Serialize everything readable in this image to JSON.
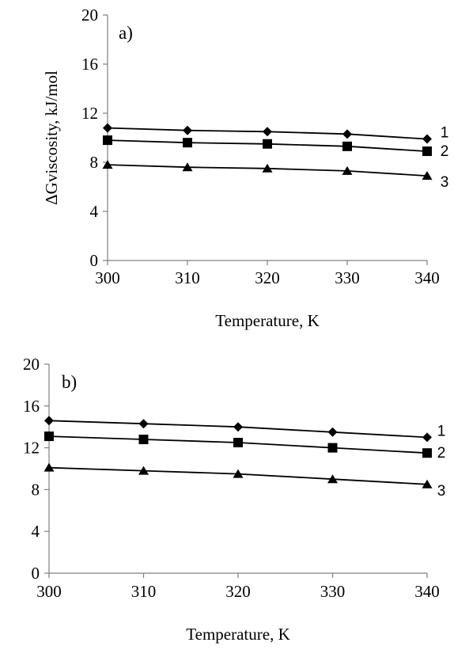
{
  "chart_data": [
    {
      "type": "line",
      "panel_label": "a)",
      "xlabel": "Temperature, K",
      "ylabel": "ΔGviscosity, kJ/mol",
      "x": [
        300,
        310,
        320,
        330,
        340
      ],
      "xlim": [
        300,
        340
      ],
      "ylim": [
        0,
        20
      ],
      "xticks": [
        "300",
        "310",
        "320",
        "330",
        "340"
      ],
      "yticks": [
        "0",
        "4",
        "8",
        "12",
        "16",
        "20"
      ],
      "grid": false,
      "series": [
        {
          "name": "1",
          "marker": "diamond",
          "values": [
            10.8,
            10.6,
            10.5,
            10.3,
            9.9
          ]
        },
        {
          "name": "2",
          "marker": "square",
          "values": [
            9.8,
            9.6,
            9.5,
            9.3,
            8.9
          ]
        },
        {
          "name": "3",
          "marker": "triangle",
          "values": [
            7.8,
            7.6,
            7.5,
            7.3,
            6.9
          ]
        }
      ]
    },
    {
      "type": "line",
      "panel_label": "b)",
      "xlabel": "Temperature, K",
      "ylabel": "",
      "x": [
        300,
        310,
        320,
        330,
        340
      ],
      "xlim": [
        300,
        340
      ],
      "ylim": [
        0,
        20
      ],
      "xticks": [
        "300",
        "310",
        "320",
        "330",
        "340"
      ],
      "yticks": [
        "0",
        "4",
        "8",
        "12",
        "16",
        "20"
      ],
      "grid": false,
      "series": [
        {
          "name": "1",
          "marker": "diamond",
          "values": [
            14.6,
            14.3,
            14.0,
            13.5,
            13.0
          ]
        },
        {
          "name": "2",
          "marker": "square",
          "values": [
            13.1,
            12.8,
            12.5,
            12.0,
            11.5
          ]
        },
        {
          "name": "3",
          "marker": "triangle",
          "values": [
            10.1,
            9.8,
            9.5,
            9.0,
            8.5
          ]
        }
      ]
    }
  ]
}
